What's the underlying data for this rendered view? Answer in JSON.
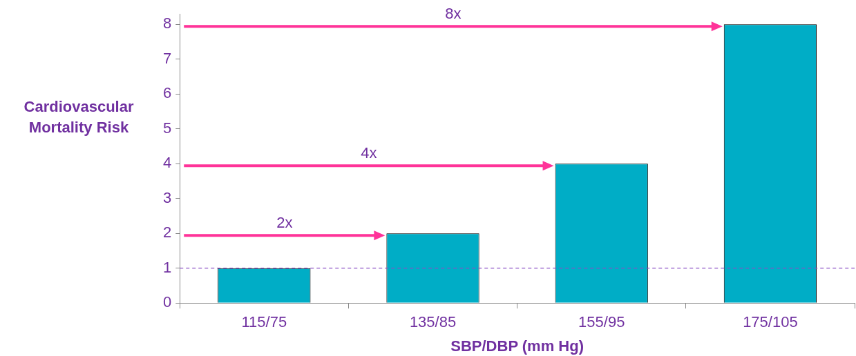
{
  "chart_data": {
    "type": "bar",
    "xlabel": "SBP/DBP (mm Hg)",
    "ylabel": "Cardiovascular Mortality Risk",
    "categories": [
      "115/75",
      "135/85",
      "155/95",
      "175/105"
    ],
    "values": [
      1,
      2,
      4,
      8
    ],
    "color": "#00adc6",
    "ylim": [
      0,
      8.3
    ],
    "yticks": [
      0,
      1,
      2,
      3,
      4,
      5,
      6,
      7,
      8
    ],
    "grid": false,
    "legend": false,
    "ref_lines": [
      {
        "axis": "y",
        "value": 1,
        "color": "#8a4fc4",
        "line_style": "dashed"
      }
    ],
    "annotations": [
      "2x",
      "4x",
      "8x"
    ]
  }
}
